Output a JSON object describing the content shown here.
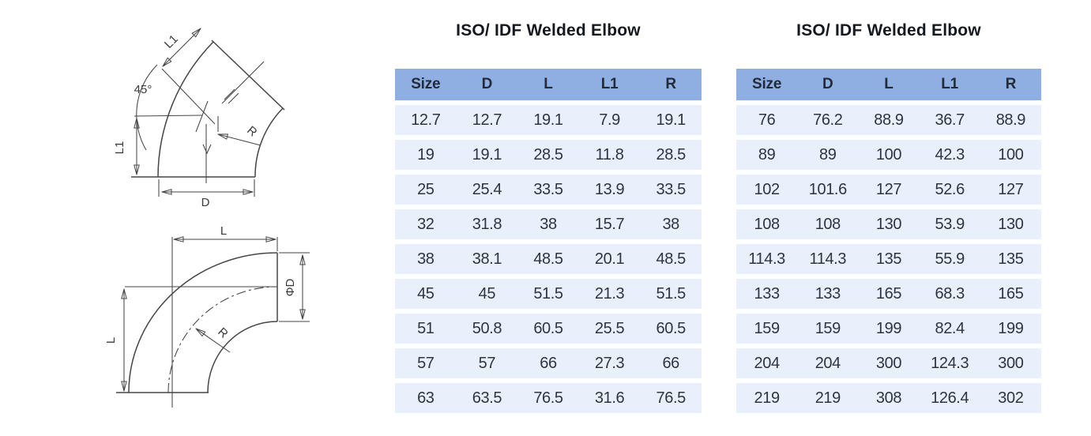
{
  "tables": [
    {
      "title": "ISO/ IDF Welded Elbow",
      "columns": [
        "Size",
        "D",
        "L",
        "L1",
        "R"
      ],
      "rows": [
        [
          "12.7",
          "12.7",
          "19.1",
          "7.9",
          "19.1"
        ],
        [
          "19",
          "19.1",
          "28.5",
          "11.8",
          "28.5"
        ],
        [
          "25",
          "25.4",
          "33.5",
          "13.9",
          "33.5"
        ],
        [
          "32",
          "31.8",
          "38",
          "15.7",
          "38"
        ],
        [
          "38",
          "38.1",
          "48.5",
          "20.1",
          "48.5"
        ],
        [
          "45",
          "45",
          "51.5",
          "21.3",
          "51.5"
        ],
        [
          "51",
          "50.8",
          "60.5",
          "25.5",
          "60.5"
        ],
        [
          "57",
          "57",
          "66",
          "27.3",
          "66"
        ],
        [
          "63",
          "63.5",
          "76.5",
          "31.6",
          "76.5"
        ]
      ]
    },
    {
      "title": "ISO/ IDF Welded Elbow",
      "columns": [
        "Size",
        "D",
        "L",
        "L1",
        "R"
      ],
      "rows": [
        [
          "76",
          "76.2",
          "88.9",
          "36.7",
          "88.9"
        ],
        [
          "89",
          "89",
          "100",
          "42.3",
          "100"
        ],
        [
          "102",
          "101.6",
          "127",
          "52.6",
          "127"
        ],
        [
          "108",
          "108",
          "130",
          "53.9",
          "130"
        ],
        [
          "114.3",
          "114.3",
          "135",
          "55.9",
          "135"
        ],
        [
          "133",
          "133",
          "165",
          "68.3",
          "165"
        ],
        [
          "159",
          "159",
          "199",
          "82.4",
          "199"
        ],
        [
          "204",
          "204",
          "300",
          "124.3",
          "300"
        ],
        [
          "219",
          "219",
          "308",
          "126.4",
          "302"
        ]
      ]
    }
  ],
  "drawings": {
    "elbow_45": {
      "labels": {
        "angle": "45°",
        "l1_diagonal": "L1",
        "l1_vertical": "L1",
        "d": "D",
        "r": "R"
      }
    },
    "elbow_90": {
      "labels": {
        "l_top": "L",
        "l_left": "L",
        "phi_d": "ΦD",
        "r": "R"
      }
    }
  },
  "colors": {
    "header_bg": "#8fafe3",
    "row_bg": "#eaf0fb",
    "header_text": "#222b3a",
    "cell_text": "#2e3440",
    "drawing_line": "#454545"
  }
}
